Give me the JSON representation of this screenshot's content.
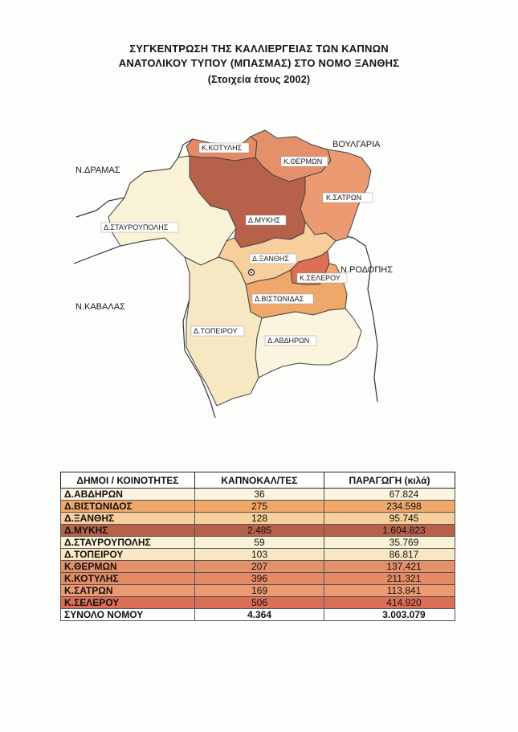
{
  "title": {
    "line1": "ΣΥΓΚΕΝΤΡΩΣΗ ΤΗΣ ΚΑΛΛΙΕΡΓΕΙΑΣ ΤΩΝ ΚΑΠΝΩΝ",
    "line2": "ΑΝΑΤΟΛΙΚΟΥ ΤΥΠΟΥ (ΜΠΑΣΜΑΣ) ΣΤΟ ΝΟΜΟ ΞΑΝΘΗΣ",
    "line3": "(Στοιχεία έτους 2002)"
  },
  "map": {
    "external_labels": {
      "bulgaria": "ΒΟΥΛΓΑΡΙΑ",
      "drama": "Ν.ΔΡΑΜΑΣ",
      "rodopi": "Ν.ΡΟΔΟΠΗΣ",
      "kavala": "Ν.ΚΑΒΑΛΑΣ"
    },
    "regions": {
      "kotyli": {
        "label": "Κ.ΚΟΤΥΛΗΣ",
        "color": "#e58a63"
      },
      "thermon": {
        "label": "Κ.ΘΕΡΜΩΝ",
        "color": "#e4906a"
      },
      "satron": {
        "label": "Κ.ΣΑΤΡΩΝ",
        "color": "#eb9a72"
      },
      "mykis": {
        "label": "Δ.ΜΥΚΗΣ",
        "color": "#b8614a"
      },
      "stavroupoli": {
        "label": "Δ.ΣΤΑΥΡΟΥΠΟΛΗΣ",
        "color": "#faf2d7"
      },
      "xanthi": {
        "label": "Δ.ΞΑΝΘΗΣ",
        "color": "#f7ce9c"
      },
      "seleroy": {
        "label": "Κ.ΣΕΛΕΡΟΥ",
        "color": "#dc6e55"
      },
      "vistonidas": {
        "label": "Δ.ΒΙΣΤΩΝΙΔΑΣ",
        "color": "#f0a76a"
      },
      "topeiroy": {
        "label": "Δ.ΤΟΠΕΙΡΟΥ",
        "color": "#f7e8c3"
      },
      "avdiron": {
        "label": "Δ.ΑΒΔΗΡΩΝ",
        "color": "#fbf4df"
      }
    }
  },
  "table": {
    "headers": [
      "ΔΗΜΟΙ / ΚΟΙΝΟΤΗΤΕΣ",
      "ΚΑΠΝΟΚΑΛ/ΤΕΣ",
      "ΠΑΡΑΓΩΓΗ (κιλά)"
    ],
    "rows": [
      {
        "name": "Δ.ΑΒΔΗΡΩΝ",
        "growers": "36",
        "production": "67.824",
        "color": "#fbf4df"
      },
      {
        "name": "Δ.ΒΙΣΤΩΝΙΔΟΣ",
        "growers": "275",
        "production": "234.598",
        "color": "#f0a76a"
      },
      {
        "name": "Δ.ΞΑΝΘΗΣ",
        "growers": "128",
        "production": "95.745",
        "color": "#f7ce9c"
      },
      {
        "name": "Δ.ΜΥΚΗΣ",
        "growers": "2.485",
        "production": "1.604.823",
        "color": "#b8614a"
      },
      {
        "name": "Δ.ΣΤΑΥΡΟΥΠΟΛΗΣ",
        "growers": "59",
        "production": "35.769",
        "color": "#faf2d7"
      },
      {
        "name": "Δ.ΤΟΠΕΙΡΟΥ",
        "growers": "103",
        "production": "86.817",
        "color": "#f7e8c3"
      },
      {
        "name": "Κ.ΘΕΡΜΩΝ",
        "growers": "207",
        "production": "137.421",
        "color": "#e4906a"
      },
      {
        "name": "Κ.ΚΟΤΥΛΗΣ",
        "growers": "396",
        "production": "211.321",
        "color": "#e58a63"
      },
      {
        "name": "Κ.ΣΑΤΡΩΝ",
        "growers": "169",
        "production": "113.841",
        "color": "#eb9a72"
      },
      {
        "name": "Κ.ΣΕΛΕΡΟΥ",
        "growers": "506",
        "production": "414.920",
        "color": "#dc6e55"
      }
    ],
    "total": {
      "name": "ΣΥΝΟΛΟ ΝΟΜΟΥ",
      "growers": "4.364",
      "production": "3.003.079"
    }
  }
}
